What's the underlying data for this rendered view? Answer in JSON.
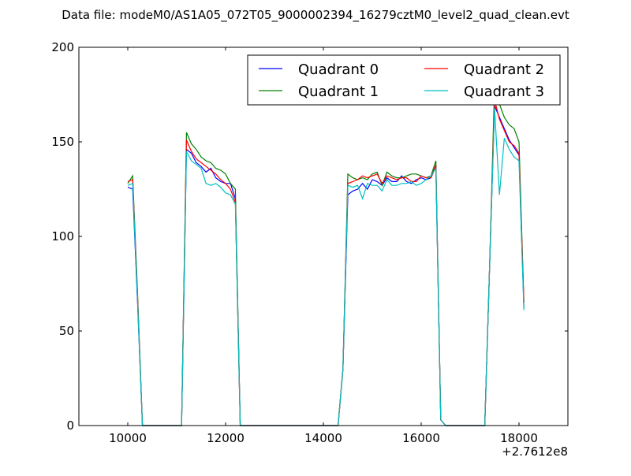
{
  "chart_data": {
    "type": "line",
    "title": "Data file: modeM0/AS1A05_072T05_9000002394_16279cztM0_level2_quad_clean.evt",
    "xlabel": "",
    "ylabel": "",
    "x_offset_label": "+2.7612e8",
    "xlim": [
      9000,
      19000
    ],
    "ylim": [
      0,
      200
    ],
    "xticks": [
      "10000",
      "12000",
      "14000",
      "16000",
      "18000"
    ],
    "xtick_values": [
      10000,
      12000,
      14000,
      16000,
      18000
    ],
    "yticks": [
      "0",
      "50",
      "100",
      "150",
      "200"
    ],
    "ytick_values": [
      0,
      50,
      100,
      150,
      200
    ],
    "legend_position": "top-right",
    "x": [
      10000,
      10100,
      10200,
      10300,
      10400,
      10500,
      10600,
      10700,
      10800,
      10900,
      11000,
      11100,
      11200,
      11300,
      11400,
      11500,
      11600,
      11700,
      11800,
      11900,
      12000,
      12100,
      12200,
      12300,
      12400,
      12500,
      12600,
      12700,
      12800,
      12900,
      13000,
      13100,
      13200,
      13300,
      13400,
      13500,
      13600,
      13700,
      13800,
      13900,
      14000,
      14100,
      14200,
      14300,
      14400,
      14500,
      14600,
      14700,
      14800,
      14900,
      15000,
      15100,
      15200,
      15300,
      15400,
      15500,
      15600,
      15700,
      15800,
      15900,
      16000,
      16100,
      16200,
      16300,
      16400,
      16500,
      16600,
      16700,
      16800,
      16900,
      17000,
      17100,
      17200,
      17300,
      17400,
      17500,
      17600,
      17700,
      17800,
      17900,
      18000,
      18100
    ],
    "series": [
      {
        "name": "Quadrant 0",
        "color": "#0000ff",
        "values": [
          126,
          125,
          65,
          0,
          0,
          0,
          0,
          0,
          0,
          0,
          0,
          0,
          146,
          144,
          139,
          137,
          134,
          136,
          131,
          129,
          128,
          128,
          120,
          0,
          0,
          0,
          0,
          0,
          0,
          0,
          0,
          0,
          0,
          0,
          0,
          0,
          0,
          0,
          0,
          0,
          0,
          0,
          0,
          0,
          30,
          122,
          124,
          125,
          128,
          125,
          130,
          129,
          127,
          131,
          129,
          129,
          132,
          129,
          128,
          130,
          131,
          130,
          131,
          137,
          3,
          0,
          0,
          0,
          0,
          0,
          0,
          0,
          0,
          0,
          85,
          169,
          163,
          157,
          151,
          147,
          143,
          62
        ]
      },
      {
        "name": "Quadrant 1",
        "color": "#008000",
        "values": [
          128,
          132,
          70,
          0,
          0,
          0,
          0,
          0,
          0,
          0,
          0,
          0,
          155,
          149,
          146,
          142,
          140,
          139,
          136,
          135,
          133,
          128,
          125,
          0,
          0,
          0,
          0,
          0,
          0,
          0,
          0,
          0,
          0,
          0,
          0,
          0,
          0,
          0,
          0,
          0,
          0,
          0,
          0,
          0,
          30,
          133,
          131,
          130,
          131,
          130,
          133,
          134,
          127,
          134,
          132,
          131,
          131,
          132,
          133,
          133,
          132,
          131,
          132,
          140,
          3,
          0,
          0,
          0,
          0,
          0,
          0,
          0,
          0,
          0,
          85,
          180,
          170,
          163,
          159,
          157,
          150,
          65
        ]
      },
      {
        "name": "Quadrant 2",
        "color": "#ff0000",
        "values": [
          129,
          130,
          68,
          0,
          0,
          0,
          0,
          0,
          0,
          0,
          0,
          0,
          151,
          145,
          141,
          139,
          137,
          135,
          133,
          130,
          128,
          125,
          118,
          0,
          0,
          0,
          0,
          0,
          0,
          0,
          0,
          0,
          0,
          0,
          0,
          0,
          0,
          0,
          0,
          0,
          0,
          0,
          0,
          0,
          30,
          128,
          129,
          130,
          132,
          131,
          132,
          133,
          128,
          132,
          131,
          130,
          131,
          131,
          129,
          129,
          132,
          131,
          131,
          138,
          3,
          0,
          0,
          0,
          0,
          0,
          0,
          0,
          0,
          0,
          85,
          172,
          162,
          156,
          150,
          148,
          144,
          65
        ]
      },
      {
        "name": "Quadrant 3",
        "color": "#00bfbf",
        "values": [
          127,
          128,
          66,
          0,
          0,
          0,
          0,
          0,
          0,
          0,
          0,
          0,
          145,
          140,
          138,
          136,
          128,
          127,
          128,
          126,
          123,
          122,
          117,
          0,
          0,
          0,
          0,
          0,
          0,
          0,
          0,
          0,
          0,
          0,
          0,
          0,
          0,
          0,
          0,
          0,
          0,
          0,
          0,
          0,
          30,
          127,
          126,
          127,
          120,
          128,
          127,
          127,
          124,
          130,
          127,
          127,
          128,
          128,
          129,
          127,
          128,
          130,
          132,
          136,
          3,
          0,
          0,
          0,
          0,
          0,
          0,
          0,
          0,
          0,
          85,
          168,
          122,
          152,
          146,
          142,
          140,
          61
        ]
      }
    ]
  }
}
